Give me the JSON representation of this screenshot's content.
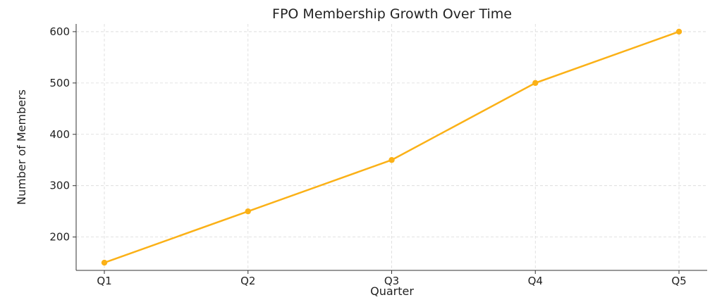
{
  "chart_data": {
    "type": "line",
    "title": "FPO Membership Growth Over Time",
    "xlabel": "Quarter",
    "ylabel": "Number of Members",
    "categories": [
      "Q1",
      "Q2",
      "Q3",
      "Q4",
      "Q5"
    ],
    "series": [
      {
        "values": [
          150,
          250,
          350,
          500,
          600
        ],
        "color": "#fbb117"
      }
    ],
    "ylim": [
      135,
      615
    ],
    "yticks": [
      200,
      300,
      400,
      500,
      600
    ],
    "grid": true,
    "marker": "circle"
  }
}
